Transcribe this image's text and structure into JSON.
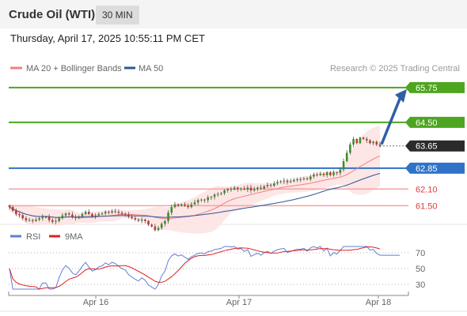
{
  "header": {
    "title": "Crude Oil (WTI)",
    "timeframe": "30 MIN",
    "datetime": "Thursday, April 17, 2025 10:55:11 PM CET"
  },
  "legend": {
    "ma20_label": "MA 20 + Bollinger Bands",
    "ma50_label": "MA 50",
    "credit": "Research © 2025 Trading Central",
    "ma20_color": "#f08080",
    "ma50_color": "#2f5597"
  },
  "chart_data": [
    {
      "type": "candlestick",
      "title": "Crude Oil (WTI) 30 MIN",
      "ylim": [
        60.8,
        66.2
      ],
      "x_ticks": [
        "Apr 16",
        "Apr 17",
        "Apr 18"
      ],
      "current_price": "63.65",
      "levels": [
        {
          "value": 65.75,
          "label": "65.75",
          "kind": "resistance",
          "color": "#4ea51f"
        },
        {
          "value": 64.5,
          "label": "64.50",
          "kind": "resistance",
          "color": "#4ea51f"
        },
        {
          "value": 62.85,
          "label": "62.85",
          "kind": "pivot",
          "color": "#2f73c9"
        },
        {
          "value": 62.1,
          "label": "62.10",
          "kind": "support",
          "color": "#e03c3c"
        },
        {
          "value": 61.5,
          "label": "61.50",
          "kind": "support",
          "color": "#e03c3c"
        }
      ],
      "arrow": {
        "from": 63.65,
        "to": 65.75,
        "color": "#2f5fa5"
      },
      "close_series": [
        61.45,
        61.32,
        61.2,
        61.16,
        61.05,
        60.98,
        60.98,
        60.95,
        61.0,
        61.05,
        61.1,
        61.1,
        60.98,
        60.92,
        60.95,
        61.05,
        61.15,
        61.22,
        61.18,
        61.1,
        61.06,
        61.12,
        61.2,
        61.28,
        61.2,
        61.12,
        61.15,
        61.2,
        61.22,
        61.28,
        61.25,
        61.3,
        61.28,
        61.24,
        61.2,
        61.18,
        61.1,
        61.05,
        61.0,
        60.96,
        61.0,
        60.95,
        60.82,
        60.75,
        60.62,
        60.7,
        60.85,
        60.95,
        61.25,
        61.45,
        61.55,
        61.5,
        61.55,
        61.5,
        61.45,
        61.55,
        61.62,
        61.7,
        61.72,
        61.7,
        61.8,
        61.82,
        61.9,
        61.92,
        61.95,
        62.05,
        62.1,
        62.08,
        62.15,
        62.1,
        62.12,
        62.08,
        62.15,
        62.05,
        62.1,
        62.15,
        62.12,
        62.2,
        62.25,
        62.22,
        62.3,
        62.35,
        62.38,
        62.4,
        62.35,
        62.38,
        62.42,
        62.45,
        62.45,
        62.48,
        62.45,
        62.55,
        62.62,
        62.6,
        62.65,
        62.6,
        62.7,
        62.6,
        62.7,
        62.68,
        62.8,
        63.1,
        63.4,
        63.7,
        63.9,
        63.75,
        63.95,
        63.9,
        63.85,
        63.75,
        63.8,
        63.7,
        63.65
      ]
    },
    {
      "type": "line",
      "title": "RSI",
      "ylim": [
        20,
        80
      ],
      "y_ticks": [
        70,
        50,
        30
      ],
      "series": [
        {
          "name": "RSI",
          "color": "#5b7fd6"
        },
        {
          "name": "9MA",
          "color": "#e02020"
        }
      ]
    }
  ]
}
